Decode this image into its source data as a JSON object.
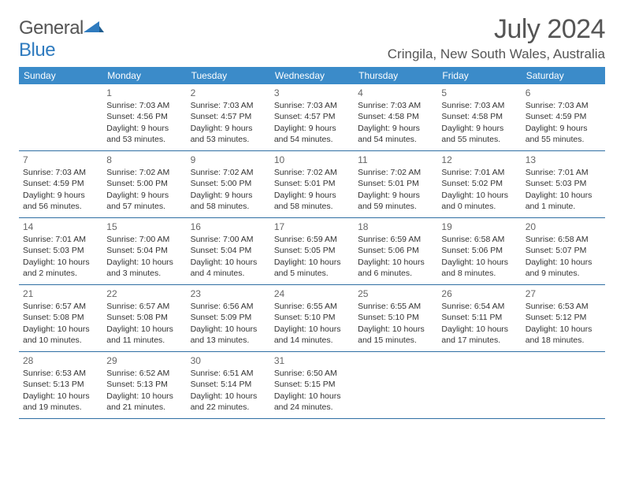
{
  "logo": {
    "text1": "General",
    "text2": "Blue"
  },
  "title": "July 2024",
  "location": "Cringila, New South Wales, Australia",
  "header_bg": "#3b8bc9",
  "divider_color": "#2f6fa3",
  "day_names": [
    "Sunday",
    "Monday",
    "Tuesday",
    "Wednesday",
    "Thursday",
    "Friday",
    "Saturday"
  ],
  "weeks": [
    [
      {
        "n": "",
        "lines": []
      },
      {
        "n": "1",
        "lines": [
          "Sunrise: 7:03 AM",
          "Sunset: 4:56 PM",
          "Daylight: 9 hours",
          "and 53 minutes."
        ]
      },
      {
        "n": "2",
        "lines": [
          "Sunrise: 7:03 AM",
          "Sunset: 4:57 PM",
          "Daylight: 9 hours",
          "and 53 minutes."
        ]
      },
      {
        "n": "3",
        "lines": [
          "Sunrise: 7:03 AM",
          "Sunset: 4:57 PM",
          "Daylight: 9 hours",
          "and 54 minutes."
        ]
      },
      {
        "n": "4",
        "lines": [
          "Sunrise: 7:03 AM",
          "Sunset: 4:58 PM",
          "Daylight: 9 hours",
          "and 54 minutes."
        ]
      },
      {
        "n": "5",
        "lines": [
          "Sunrise: 7:03 AM",
          "Sunset: 4:58 PM",
          "Daylight: 9 hours",
          "and 55 minutes."
        ]
      },
      {
        "n": "6",
        "lines": [
          "Sunrise: 7:03 AM",
          "Sunset: 4:59 PM",
          "Daylight: 9 hours",
          "and 55 minutes."
        ]
      }
    ],
    [
      {
        "n": "7",
        "lines": [
          "Sunrise: 7:03 AM",
          "Sunset: 4:59 PM",
          "Daylight: 9 hours",
          "and 56 minutes."
        ]
      },
      {
        "n": "8",
        "lines": [
          "Sunrise: 7:02 AM",
          "Sunset: 5:00 PM",
          "Daylight: 9 hours",
          "and 57 minutes."
        ]
      },
      {
        "n": "9",
        "lines": [
          "Sunrise: 7:02 AM",
          "Sunset: 5:00 PM",
          "Daylight: 9 hours",
          "and 58 minutes."
        ]
      },
      {
        "n": "10",
        "lines": [
          "Sunrise: 7:02 AM",
          "Sunset: 5:01 PM",
          "Daylight: 9 hours",
          "and 58 minutes."
        ]
      },
      {
        "n": "11",
        "lines": [
          "Sunrise: 7:02 AM",
          "Sunset: 5:01 PM",
          "Daylight: 9 hours",
          "and 59 minutes."
        ]
      },
      {
        "n": "12",
        "lines": [
          "Sunrise: 7:01 AM",
          "Sunset: 5:02 PM",
          "Daylight: 10 hours",
          "and 0 minutes."
        ]
      },
      {
        "n": "13",
        "lines": [
          "Sunrise: 7:01 AM",
          "Sunset: 5:03 PM",
          "Daylight: 10 hours",
          "and 1 minute."
        ]
      }
    ],
    [
      {
        "n": "14",
        "lines": [
          "Sunrise: 7:01 AM",
          "Sunset: 5:03 PM",
          "Daylight: 10 hours",
          "and 2 minutes."
        ]
      },
      {
        "n": "15",
        "lines": [
          "Sunrise: 7:00 AM",
          "Sunset: 5:04 PM",
          "Daylight: 10 hours",
          "and 3 minutes."
        ]
      },
      {
        "n": "16",
        "lines": [
          "Sunrise: 7:00 AM",
          "Sunset: 5:04 PM",
          "Daylight: 10 hours",
          "and 4 minutes."
        ]
      },
      {
        "n": "17",
        "lines": [
          "Sunrise: 6:59 AM",
          "Sunset: 5:05 PM",
          "Daylight: 10 hours",
          "and 5 minutes."
        ]
      },
      {
        "n": "18",
        "lines": [
          "Sunrise: 6:59 AM",
          "Sunset: 5:06 PM",
          "Daylight: 10 hours",
          "and 6 minutes."
        ]
      },
      {
        "n": "19",
        "lines": [
          "Sunrise: 6:58 AM",
          "Sunset: 5:06 PM",
          "Daylight: 10 hours",
          "and 8 minutes."
        ]
      },
      {
        "n": "20",
        "lines": [
          "Sunrise: 6:58 AM",
          "Sunset: 5:07 PM",
          "Daylight: 10 hours",
          "and 9 minutes."
        ]
      }
    ],
    [
      {
        "n": "21",
        "lines": [
          "Sunrise: 6:57 AM",
          "Sunset: 5:08 PM",
          "Daylight: 10 hours",
          "and 10 minutes."
        ]
      },
      {
        "n": "22",
        "lines": [
          "Sunrise: 6:57 AM",
          "Sunset: 5:08 PM",
          "Daylight: 10 hours",
          "and 11 minutes."
        ]
      },
      {
        "n": "23",
        "lines": [
          "Sunrise: 6:56 AM",
          "Sunset: 5:09 PM",
          "Daylight: 10 hours",
          "and 13 minutes."
        ]
      },
      {
        "n": "24",
        "lines": [
          "Sunrise: 6:55 AM",
          "Sunset: 5:10 PM",
          "Daylight: 10 hours",
          "and 14 minutes."
        ]
      },
      {
        "n": "25",
        "lines": [
          "Sunrise: 6:55 AM",
          "Sunset: 5:10 PM",
          "Daylight: 10 hours",
          "and 15 minutes."
        ]
      },
      {
        "n": "26",
        "lines": [
          "Sunrise: 6:54 AM",
          "Sunset: 5:11 PM",
          "Daylight: 10 hours",
          "and 17 minutes."
        ]
      },
      {
        "n": "27",
        "lines": [
          "Sunrise: 6:53 AM",
          "Sunset: 5:12 PM",
          "Daylight: 10 hours",
          "and 18 minutes."
        ]
      }
    ],
    [
      {
        "n": "28",
        "lines": [
          "Sunrise: 6:53 AM",
          "Sunset: 5:13 PM",
          "Daylight: 10 hours",
          "and 19 minutes."
        ]
      },
      {
        "n": "29",
        "lines": [
          "Sunrise: 6:52 AM",
          "Sunset: 5:13 PM",
          "Daylight: 10 hours",
          "and 21 minutes."
        ]
      },
      {
        "n": "30",
        "lines": [
          "Sunrise: 6:51 AM",
          "Sunset: 5:14 PM",
          "Daylight: 10 hours",
          "and 22 minutes."
        ]
      },
      {
        "n": "31",
        "lines": [
          "Sunrise: 6:50 AM",
          "Sunset: 5:15 PM",
          "Daylight: 10 hours",
          "and 24 minutes."
        ]
      },
      {
        "n": "",
        "lines": []
      },
      {
        "n": "",
        "lines": []
      },
      {
        "n": "",
        "lines": []
      }
    ]
  ]
}
